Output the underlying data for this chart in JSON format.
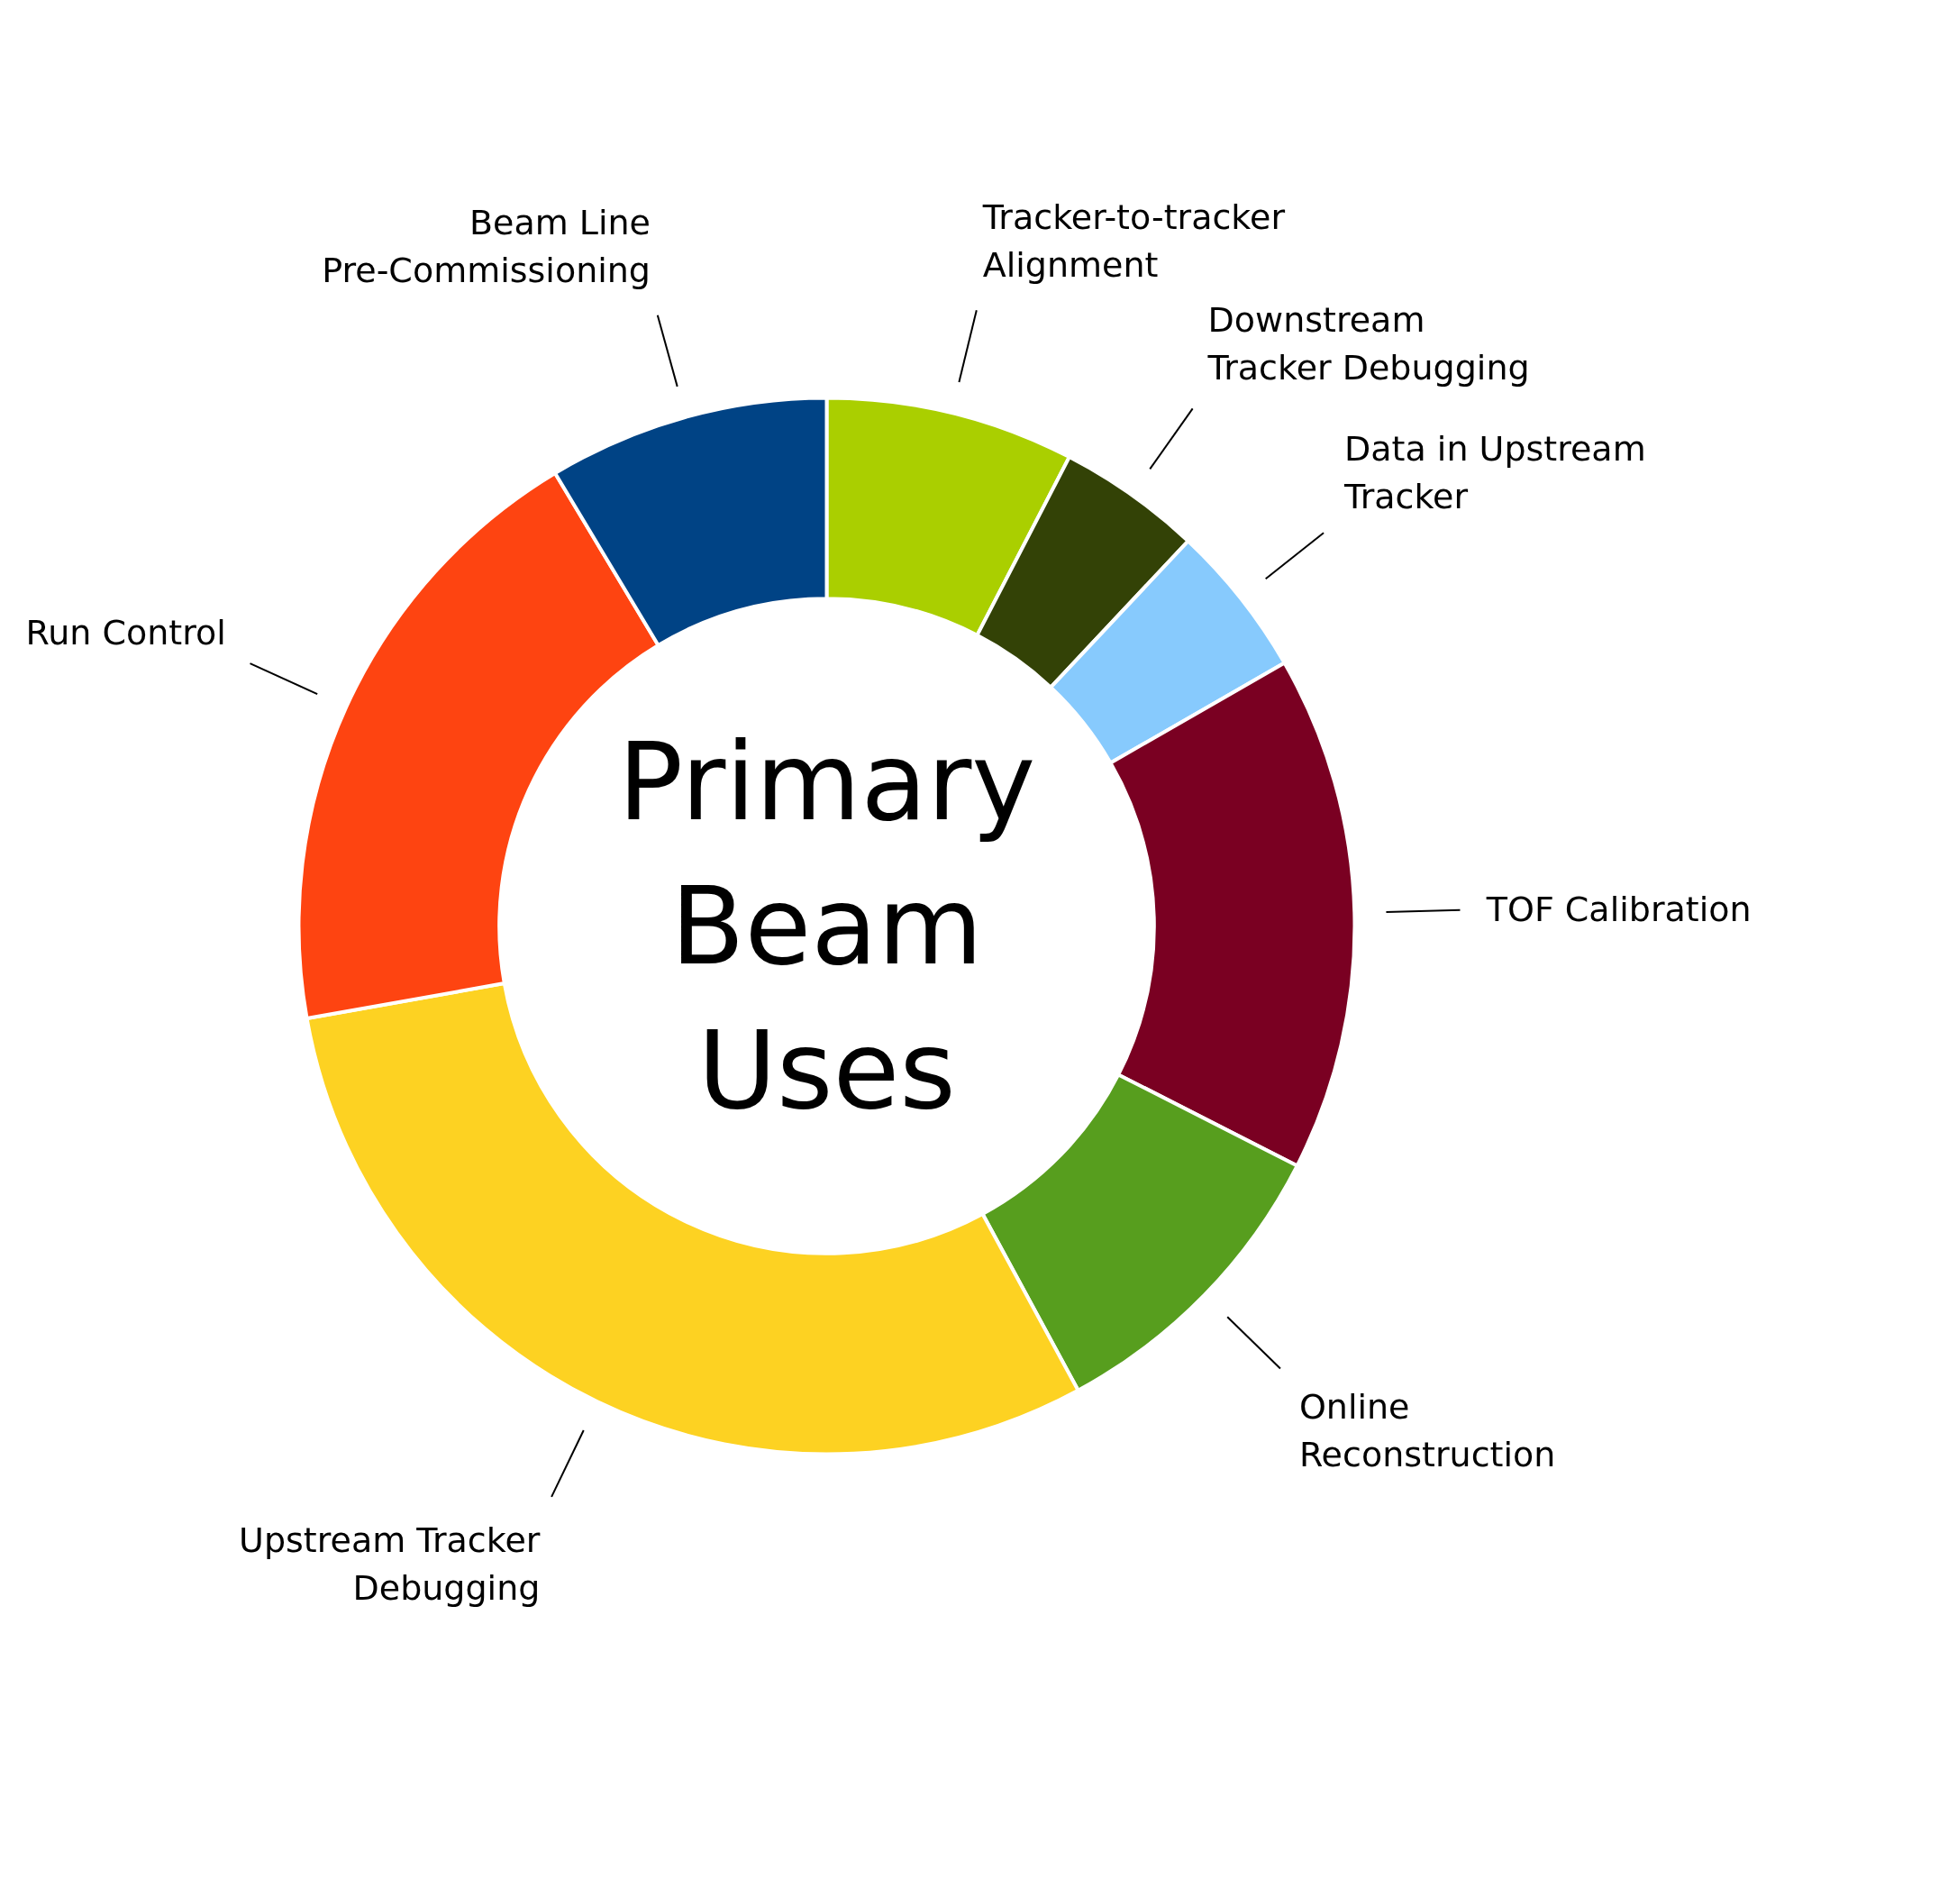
{
  "chart_data": {
    "type": "donut",
    "title": "Primary Beam Uses",
    "categories": [
      "Tracker-to-tracker Alignment",
      "Downstream Tracker Debugging",
      "Data in Upstream Tracker",
      "TOF Calibration",
      "Online Reconstruction",
      "Upstream Tracker Debugging",
      "Run Control",
      "Beam Line Pre-Commissioning"
    ],
    "values": [
      7.6,
      4.4,
      4.7,
      15.8,
      9.6,
      30.1,
      19.2,
      8.6
    ],
    "colors": [
      "#aacf00",
      "#334206",
      "#87cafd",
      "#7a0022",
      "#579e1e",
      "#fdd222",
      "#fe4411",
      "#004385"
    ]
  }
}
